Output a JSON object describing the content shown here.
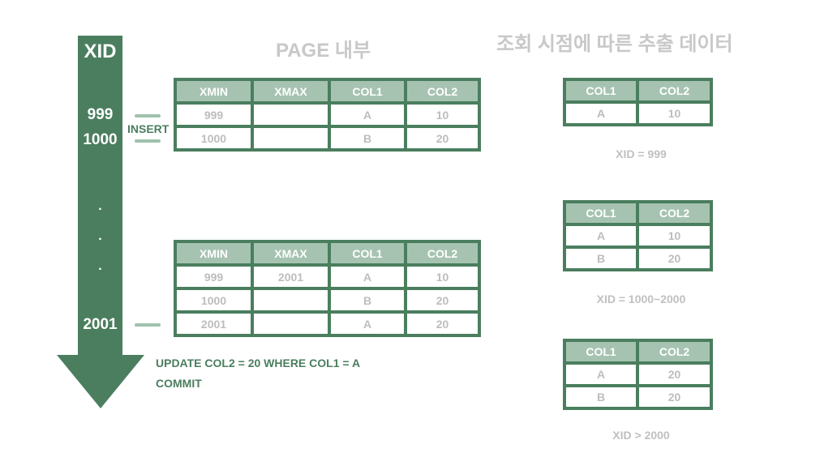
{
  "headings": {
    "page_inside": "PAGE 내부",
    "data_by_time": "조회 시점에 따른 추출 데이터"
  },
  "xid_axis": {
    "title": "XID",
    "labels": [
      "999",
      "1000",
      "2001"
    ],
    "dots": [
      ".",
      ".",
      "."
    ]
  },
  "insert_label": "INSERT",
  "update_statement": {
    "line1": "UPDATE COL2 = 20 WHERE COL1 = A",
    "line2": "COMMIT"
  },
  "page_table_1": {
    "headers": [
      "XMIN",
      "XMAX",
      "COL1",
      "COL2"
    ],
    "rows": [
      [
        "999",
        "",
        "A",
        "10"
      ],
      [
        "1000",
        "",
        "B",
        "20"
      ]
    ]
  },
  "page_table_2": {
    "headers": [
      "XMIN",
      "XMAX",
      "COL1",
      "COL2"
    ],
    "rows": [
      [
        "999",
        "2001",
        "A",
        "10"
      ],
      [
        "1000",
        "",
        "B",
        "20"
      ],
      [
        "2001",
        "",
        "A",
        "20"
      ]
    ]
  },
  "result_tables": [
    {
      "headers": [
        "COL1",
        "COL2"
      ],
      "rows": [
        [
          "A",
          "10"
        ]
      ],
      "caption": "XID = 999"
    },
    {
      "headers": [
        "COL1",
        "COL2"
      ],
      "rows": [
        [
          "A",
          "10"
        ],
        [
          "B",
          "20"
        ]
      ],
      "caption": "XID = 1000~2000"
    },
    {
      "headers": [
        "COL1",
        "COL2"
      ],
      "rows": [
        [
          "A",
          "20"
        ],
        [
          "B",
          "20"
        ]
      ],
      "caption": "XID > 2000"
    }
  ],
  "colors": {
    "accent_green": "#4a7e5e",
    "header_green": "#a6c3b1",
    "connector": "#9fc1ad",
    "muted_text": "#c0c0c0"
  }
}
